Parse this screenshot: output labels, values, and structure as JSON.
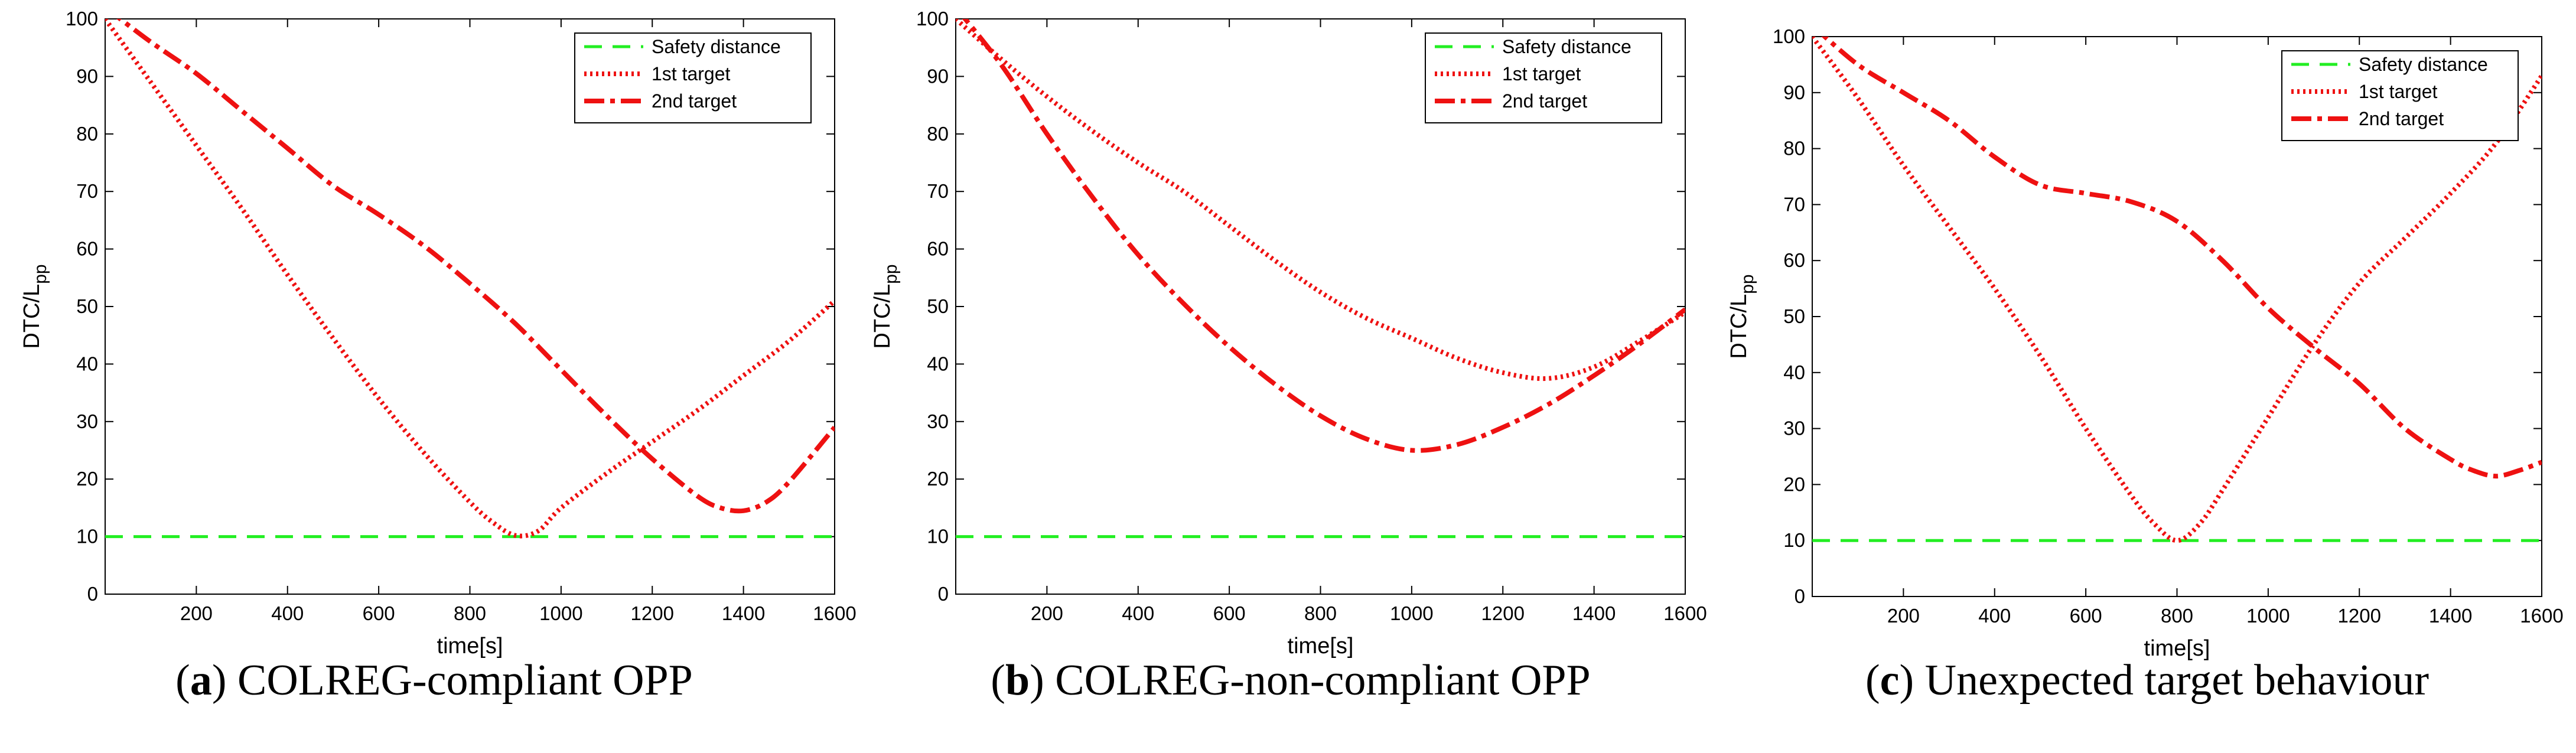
{
  "chart_data": [
    {
      "type": "line",
      "caption_letter": "a",
      "caption_text": "COLREG-compliant OPP",
      "xlabel": "time[s]",
      "ylabel_main": "DTC/L",
      "ylabel_sub": "pp",
      "xlim": [
        0,
        1600
      ],
      "ylim": [
        0,
        100
      ],
      "xticks": [
        200,
        400,
        600,
        800,
        1000,
        1200,
        1400,
        1600
      ],
      "yticks": [
        0,
        10,
        20,
        30,
        40,
        50,
        60,
        70,
        80,
        90,
        100
      ],
      "legend": [
        "Safety distance",
        "1st target",
        "2nd target"
      ],
      "legend_position": "top-right",
      "series": [
        {
          "name": "Safety distance",
          "style": "dashed",
          "color": "#22ee22",
          "x": [
            0,
            1600
          ],
          "y": [
            10,
            10
          ]
        },
        {
          "name": "1st target",
          "style": "dotted",
          "color": "#ee1111",
          "x": [
            0,
            100,
            200,
            300,
            400,
            500,
            600,
            700,
            800,
            850,
            900,
            950,
            1000,
            1100,
            1200,
            1300,
            1400,
            1500,
            1600
          ],
          "y": [
            100,
            89,
            78,
            67,
            55.5,
            44.5,
            34,
            24.5,
            16,
            12.5,
            10.2,
            11,
            15,
            21,
            26.5,
            32,
            38,
            44,
            51
          ]
        },
        {
          "name": "2nd target",
          "style": "dashdot",
          "color": "#ee1111",
          "x": [
            0,
            100,
            200,
            300,
            400,
            500,
            600,
            700,
            800,
            900,
            1000,
            1100,
            1200,
            1300,
            1350,
            1400,
            1450,
            1500,
            1600
          ],
          "y": [
            102,
            96,
            90.5,
            84,
            77.5,
            71,
            66,
            60.5,
            54,
            47,
            39,
            31,
            23.5,
            17,
            15,
            14.5,
            16,
            19.5,
            29
          ]
        }
      ]
    },
    {
      "type": "line",
      "caption_letter": "b",
      "caption_text": "COLREG-non-compliant OPP",
      "xlabel": "time[s]",
      "ylabel_main": "DTC/L",
      "ylabel_sub": "pp",
      "xlim": [
        0,
        1600
      ],
      "ylim": [
        0,
        100
      ],
      "xticks": [
        200,
        400,
        600,
        800,
        1000,
        1200,
        1400,
        1600
      ],
      "yticks": [
        0,
        10,
        20,
        30,
        40,
        50,
        60,
        70,
        80,
        90,
        100
      ],
      "legend": [
        "Safety distance",
        "1st target",
        "2nd target"
      ],
      "legend_position": "top-right",
      "series": [
        {
          "name": "Safety distance",
          "style": "dashed",
          "color": "#22ee22",
          "x": [
            0,
            1600
          ],
          "y": [
            10,
            10
          ]
        },
        {
          "name": "1st target",
          "style": "dotted",
          "color": "#ee1111",
          "x": [
            0,
            100,
            200,
            300,
            400,
            500,
            600,
            700,
            800,
            900,
            1000,
            1100,
            1200,
            1300,
            1400,
            1500,
            1600
          ],
          "y": [
            100,
            93,
            86.5,
            80.5,
            75,
            70,
            64,
            58,
            52.5,
            48,
            44.5,
            41,
            38.5,
            37.5,
            39.5,
            44,
            49
          ]
        },
        {
          "name": "2nd target",
          "style": "dashdot",
          "color": "#ee1111",
          "x": [
            0,
            100,
            200,
            300,
            400,
            500,
            600,
            700,
            800,
            900,
            1000,
            1100,
            1200,
            1300,
            1400,
            1500,
            1600
          ],
          "y": [
            102,
            92,
            80,
            69,
            59,
            50.5,
            43,
            36.5,
            31,
            27,
            25,
            26,
            29,
            33,
            38,
            43.5,
            49.5
          ]
        }
      ]
    },
    {
      "type": "line",
      "caption_letter": "c",
      "caption_text": "Unexpected target behaviour",
      "xlabel": "time[s]",
      "ylabel_main": "DTC/L",
      "ylabel_sub": "pp",
      "xlim": [
        0,
        1600
      ],
      "ylim": [
        0,
        100
      ],
      "xticks": [
        200,
        400,
        600,
        800,
        1000,
        1200,
        1400,
        1600
      ],
      "yticks": [
        0,
        10,
        20,
        30,
        40,
        50,
        60,
        70,
        80,
        90,
        100
      ],
      "legend": [
        "Safety distance",
        "1st target",
        "2nd target"
      ],
      "legend_position": "top-right",
      "series": [
        {
          "name": "Safety distance",
          "style": "dashed",
          "color": "#22ee22",
          "x": [
            0,
            1600
          ],
          "y": [
            10,
            10
          ]
        },
        {
          "name": "1st target",
          "style": "dotted",
          "color": "#ee1111",
          "x": [
            0,
            100,
            200,
            300,
            400,
            500,
            600,
            700,
            750,
            800,
            850,
            900,
            1000,
            1100,
            1200,
            1300,
            1400,
            1500,
            1600
          ],
          "y": [
            100,
            89,
            77,
            66,
            55,
            43,
            30,
            18,
            13,
            10,
            13,
            19,
            32,
            45,
            56,
            64,
            72,
            81,
            93
          ]
        },
        {
          "name": "2nd target",
          "style": "dashdot",
          "color": "#ee1111",
          "x": [
            0,
            100,
            200,
            300,
            400,
            500,
            600,
            700,
            800,
            900,
            1000,
            1100,
            1200,
            1300,
            1400,
            1450,
            1500,
            1550,
            1600
          ],
          "y": [
            102,
            95,
            90,
            85,
            78.5,
            73.5,
            72,
            70.5,
            67,
            60,
            51.5,
            44.5,
            38,
            30,
            24.5,
            22.5,
            21.5,
            22.5,
            24
          ]
        }
      ]
    }
  ]
}
